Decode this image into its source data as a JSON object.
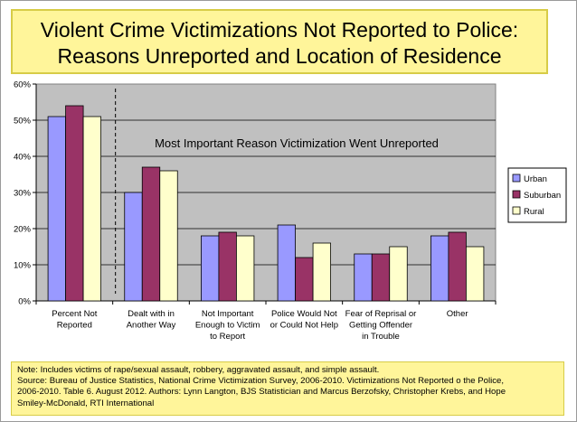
{
  "title_lines": [
    "Violent Crime Victimizations Not Reported to Police:",
    "Reasons Unreported and Location of Residence"
  ],
  "note_lines": [
    "Note: Includes victims of rape/sexual assault, robbery, aggravated assault, and simple assault.",
    "Source: Bureau of Justice Statistics, National Crime Victimization Survey, 2006-2010. Victimizations Not Reported o the Police,",
    "2006-2010. Table 6. August 2012. Authors: Lynn Langton, BJS Statistician and Marcus Berzofsky, Christopher Krebs, and Hope",
    "Smiley-McDonald, RTI International"
  ],
  "chart_data": {
    "type": "bar",
    "title": "Violent Crime Victimizations Not Reported to Police: Reasons Unreported and Location of Residence",
    "categories": [
      "Percent Not Reported",
      "Dealt with in Another Way",
      "Not Important Enough to Victim to Report",
      "Police Would Not or Could Not Help",
      "Fear of Reprisal or Getting Offender in Trouble",
      "Other"
    ],
    "category_label_lines": [
      [
        "Percent Not",
        "Reported"
      ],
      [
        "Dealt with in",
        "Another Way"
      ],
      [
        "Not Important",
        "Enough to Victim",
        "to Report"
      ],
      [
        "Police Would Not",
        "or Could Not Help"
      ],
      [
        "Fear of Reprisal or",
        "Getting Offender",
        "in Trouble"
      ],
      [
        "Other"
      ]
    ],
    "series": [
      {
        "name": "Urban",
        "color": "#9999ff",
        "values": [
          51,
          30,
          18,
          21,
          13,
          18
        ]
      },
      {
        "name": "Suburban",
        "color": "#993366",
        "values": [
          54,
          37,
          19,
          12,
          13,
          19
        ]
      },
      {
        "name": "Rural",
        "color": "#ffffcc",
        "values": [
          51,
          36,
          18,
          16,
          15,
          15
        ]
      }
    ],
    "ylim": [
      0,
      60
    ],
    "yticks": [
      0,
      10,
      20,
      30,
      40,
      50,
      60
    ],
    "ytick_labels": [
      "0%",
      "10%",
      "20%",
      "30%",
      "40%",
      "50%",
      "60%"
    ],
    "annotation": "Most Important Reason Victimization Went Unreported",
    "grid": true,
    "legend_position": "right",
    "plot_background": "#c0c0c0",
    "divider": "dashed vertical line after first category"
  }
}
